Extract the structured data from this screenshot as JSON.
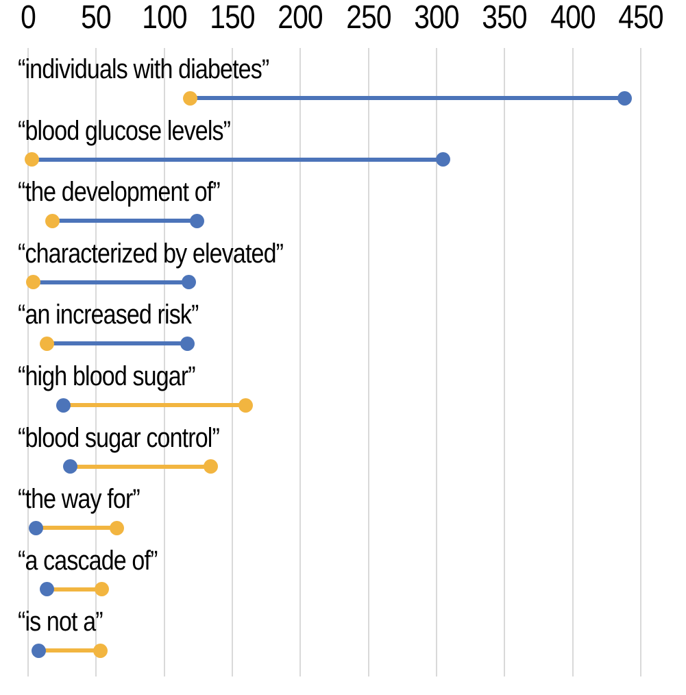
{
  "chart_data": {
    "type": "dumbbell",
    "title": "",
    "xlabel": "",
    "ylabel": "",
    "x_axis": {
      "position": "top",
      "ticks": [
        0,
        50,
        100,
        150,
        200,
        250,
        300,
        350,
        400,
        450
      ],
      "range": [
        0,
        480
      ],
      "grid": true,
      "gridline_color": "#d9d9d9"
    },
    "legend": "none",
    "categories": [
      "“individuals with diabetes”",
      "“blood glucose levels”",
      "“the development of”",
      "“characterized by elevated”",
      "“an increased risk”",
      "“high blood sugar”",
      "“blood sugar control”",
      "“the way for”",
      "“a cascade of”",
      "“is not a”"
    ],
    "series": [
      {
        "name": "blue-series",
        "color": "#4c74b9",
        "values": [
          438,
          305,
          124,
          118,
          117,
          26,
          31,
          6,
          14,
          8
        ]
      },
      {
        "name": "orange-series",
        "color": "#f2b540",
        "values": [
          119,
          3,
          18,
          4,
          14,
          160,
          134,
          65,
          54,
          53
        ]
      }
    ],
    "connector_rule": "colored by series with larger value"
  },
  "colors": {
    "background": "#ffffff",
    "text": "#000000",
    "gridline": "#d9d9d9",
    "blue": "#4c74b9",
    "orange": "#f2b540"
  }
}
